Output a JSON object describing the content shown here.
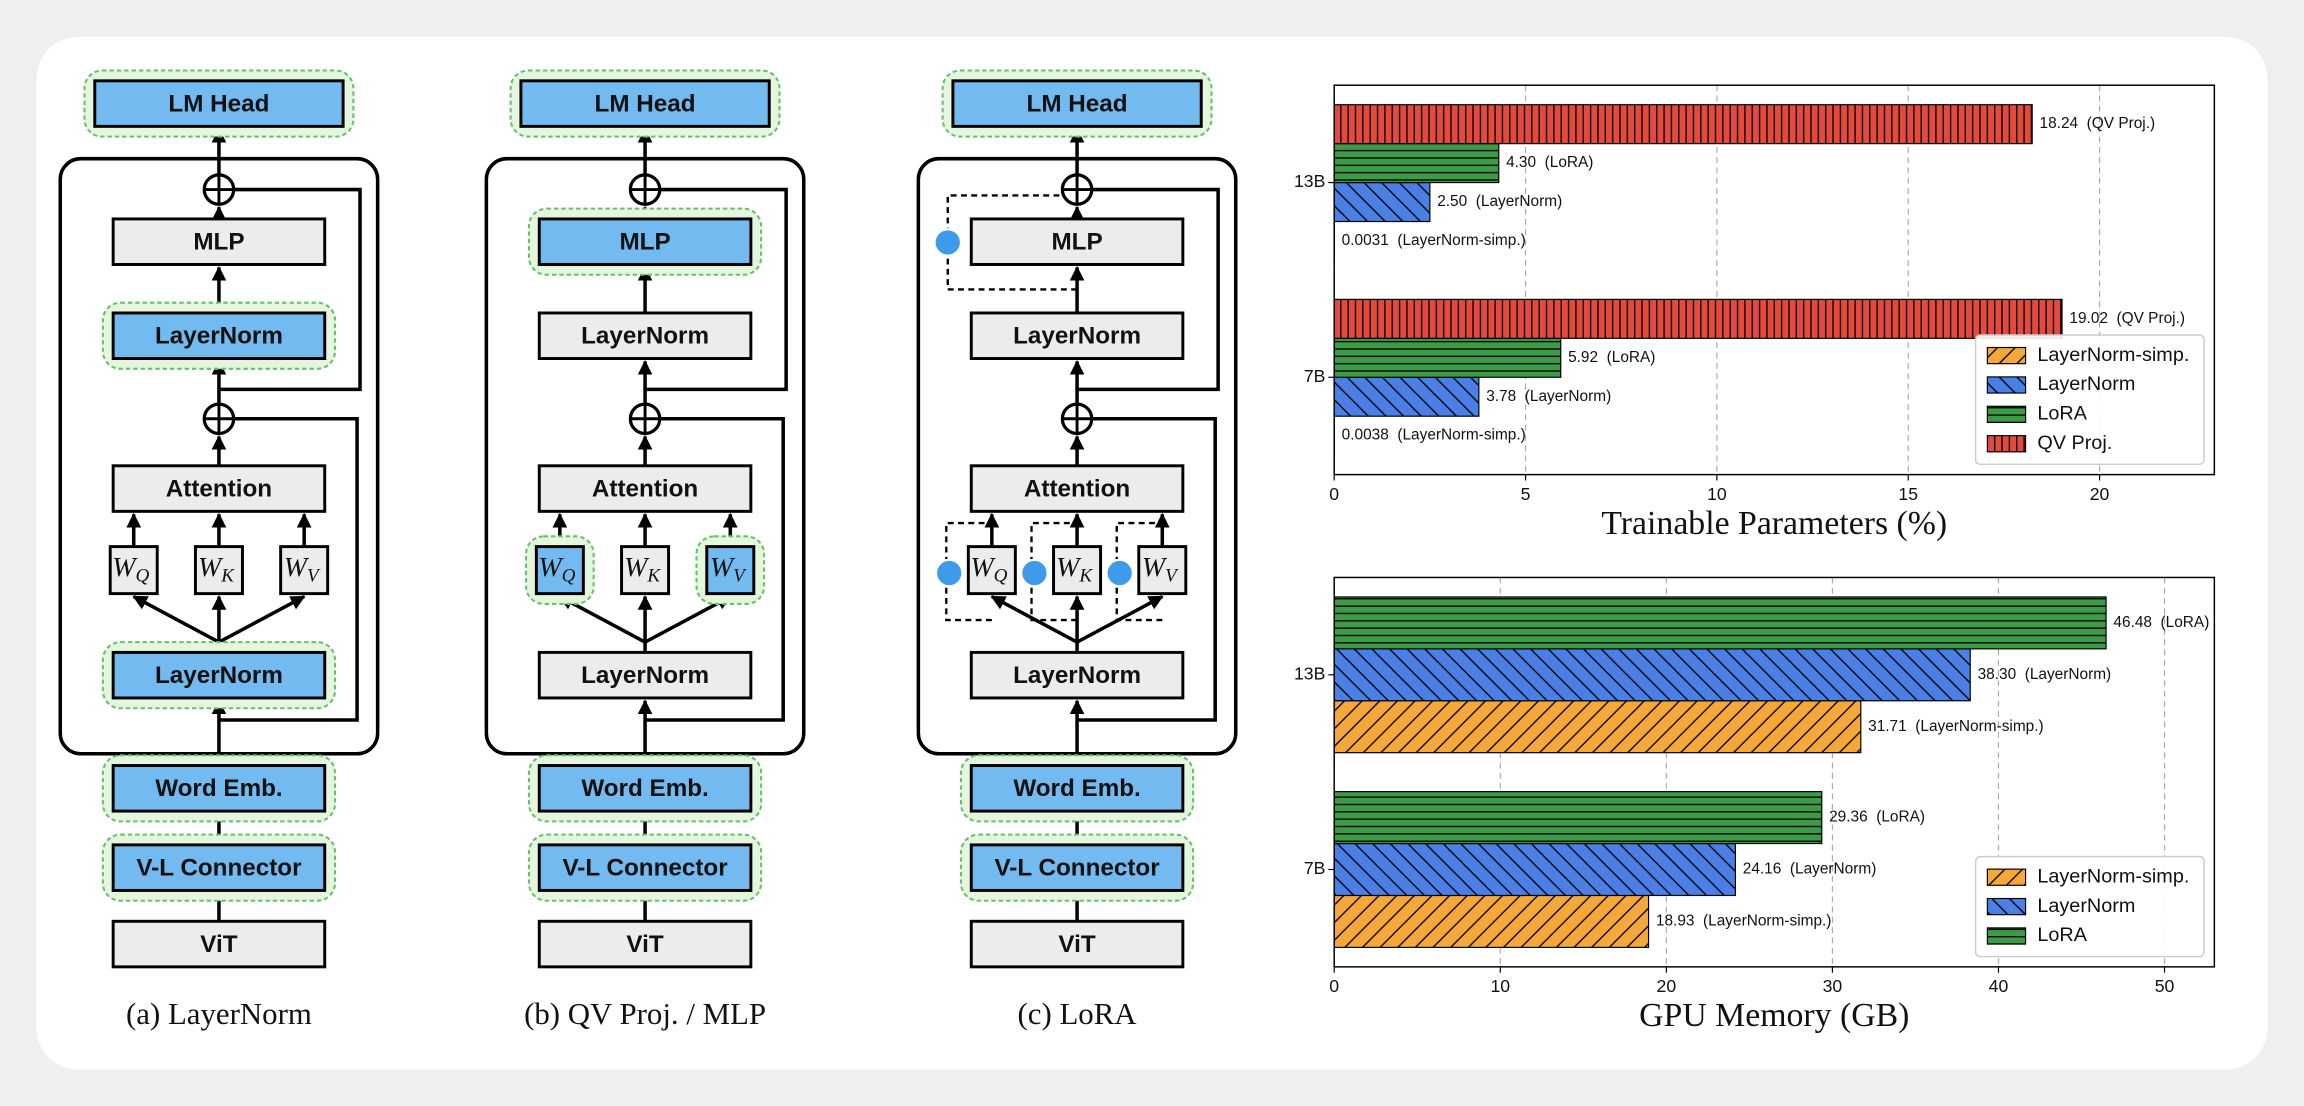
{
  "diagrams": [
    {
      "caption": "(a) LayerNorm",
      "lm_head": "LM Head",
      "mlp": "MLP",
      "norm_top": "LayerNorm",
      "attention": "Attention",
      "wq": {
        "main": "W",
        "sub": "Q"
      },
      "wk": {
        "main": "W",
        "sub": "K"
      },
      "wv": {
        "main": "W",
        "sub": "V"
      },
      "norm_bottom": "LayerNorm",
      "word_emb": "Word Emb.",
      "connector": "V-L Connector",
      "vit": "ViT"
    },
    {
      "caption": "(b) QV Proj. / MLP",
      "lm_head": "LM Head",
      "mlp": "MLP",
      "norm_top": "LayerNorm",
      "attention": "Attention",
      "wq": {
        "main": "W",
        "sub": "Q"
      },
      "wk": {
        "main": "W",
        "sub": "K"
      },
      "wv": {
        "main": "W",
        "sub": "V"
      },
      "norm_bottom": "LayerNorm",
      "word_emb": "Word Emb.",
      "connector": "V-L Connector",
      "vit": "ViT"
    },
    {
      "caption": "(c) LoRA",
      "lm_head": "LM Head",
      "mlp": "MLP",
      "norm_top": "LayerNorm",
      "attention": "Attention",
      "wq": {
        "main": "W",
        "sub": "Q"
      },
      "wk": {
        "main": "W",
        "sub": "K"
      },
      "wv": {
        "main": "W",
        "sub": "V"
      },
      "norm_bottom": "LayerNorm",
      "word_emb": "Word Emb.",
      "connector": "V-L Connector",
      "vit": "ViT"
    }
  ],
  "chart_data": [
    {
      "type": "bar",
      "orientation": "horizontal",
      "xlabel": "Trainable Parameters (%)",
      "categories": [
        "13B",
        "7B"
      ],
      "series": [
        {
          "name": "LayerNorm-simp.",
          "color": "#f5a83a",
          "hatch": "/",
          "values": [
            0.0031,
            0.0038
          ],
          "value_labels": [
            "0.0031  (LayerNorm-simp.)",
            "0.0038  (LayerNorm-simp.)"
          ]
        },
        {
          "name": "LayerNorm",
          "color": "#4a7fe6",
          "hatch": "\\",
          "values": [
            2.5,
            3.78
          ],
          "value_labels": [
            "2.50  (LayerNorm)",
            "3.78  (LayerNorm)"
          ]
        },
        {
          "name": "LoRA",
          "color": "#3d9a45",
          "hatch": "-",
          "values": [
            4.3,
            5.92
          ],
          "value_labels": [
            "4.30  (LoRA)",
            "5.92  (LoRA)"
          ]
        },
        {
          "name": "QV Proj.",
          "color": "#e34a3c",
          "hatch": "|",
          "values": [
            18.24,
            19.02
          ],
          "value_labels": [
            "18.24  (QV Proj.)",
            "19.02  (QV Proj.)"
          ]
        }
      ],
      "xlim": [
        0,
        23
      ],
      "xticks": [
        0,
        5,
        10,
        15,
        20
      ],
      "grid": true,
      "legend": "lower right"
    },
    {
      "type": "bar",
      "orientation": "horizontal",
      "xlabel": "GPU Memory (GB)",
      "categories": [
        "13B",
        "7B"
      ],
      "series": [
        {
          "name": "LayerNorm-simp.",
          "color": "#f5a83a",
          "hatch": "/",
          "values": [
            31.71,
            18.93
          ],
          "value_labels": [
            "31.71  (LayerNorm-simp.)",
            "18.93  (LayerNorm-simp.)"
          ]
        },
        {
          "name": "LayerNorm",
          "color": "#4a7fe6",
          "hatch": "\\",
          "values": [
            38.3,
            24.16
          ],
          "value_labels": [
            "38.30  (LayerNorm)",
            "24.16  (LayerNorm)"
          ]
        },
        {
          "name": "LoRA",
          "color": "#3d9a45",
          "hatch": "-",
          "values": [
            46.48,
            29.36
          ],
          "value_labels": [
            "46.48  (LoRA)",
            "29.36  (LoRA)"
          ]
        }
      ],
      "xlim": [
        0,
        53
      ],
      "xticks": [
        0,
        10,
        20,
        30,
        40,
        50
      ],
      "grid": true,
      "legend": "lower right"
    }
  ]
}
